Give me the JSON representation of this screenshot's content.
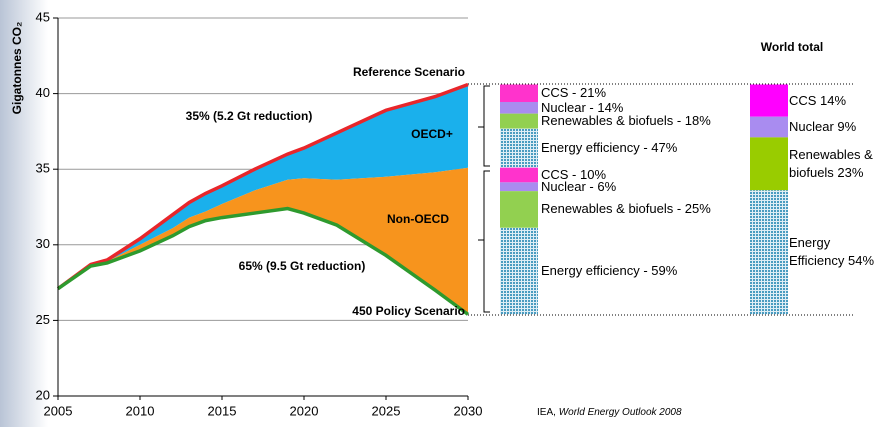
{
  "chart_data": {
    "type": "area",
    "y_label": "Gigatonnes CO₂",
    "xlim": [
      2005,
      2030
    ],
    "xticks": [
      2005,
      2010,
      2015,
      2020,
      2025,
      2030
    ],
    "ylim": [
      20,
      45
    ],
    "yticks": [
      20,
      25,
      30,
      35,
      40,
      45
    ],
    "grid": true,
    "x": [
      2005,
      2007,
      2008,
      2010,
      2012,
      2013,
      2014,
      2015,
      2017,
      2019,
      2020,
      2022,
      2025,
      2028,
      2030
    ],
    "series": [
      {
        "name": "Reference Scenario",
        "color": "#e8262b",
        "values": [
          27.1,
          28.7,
          29.0,
          30.4,
          32.0,
          32.8,
          33.4,
          33.9,
          35.0,
          36.0,
          36.4,
          37.4,
          38.9,
          39.8,
          40.6
        ]
      },
      {
        "values": [
          27.1,
          28.6,
          28.9,
          30.0,
          31.1,
          31.8,
          32.2,
          32.7,
          33.6,
          34.3,
          34.4,
          34.3,
          34.5,
          34.8,
          35.1
        ]
      },
      {
        "name": "450 Policy Scenario",
        "color": "#2e9a2e",
        "values": [
          27.1,
          28.6,
          28.8,
          29.6,
          30.6,
          31.2,
          31.6,
          31.8,
          32.1,
          32.4,
          32.1,
          31.3,
          29.3,
          27.0,
          25.4
        ]
      }
    ],
    "areas": [
      {
        "name": "OECD+",
        "color": "#1ab0ec"
      },
      {
        "name": "Non-OECD",
        "color": "#f7941d"
      }
    ],
    "annotations": [
      "35% (5.2 Gt reduction)",
      "65% (9.5 Gt reduction)"
    ],
    "stacks": [
      {
        "segments": [
          {
            "label": "CCS - 21%",
            "value": 21,
            "color": "#ff33cc"
          },
          {
            "label": "Nuclear - 14%",
            "value": 14,
            "color": "#a98cf0"
          },
          {
            "label": "Renewables & biofuels - 18%",
            "value": 18,
            "color": "#92d050"
          },
          {
            "label": "Energy efficiency - 47%",
            "value": 47,
            "color": "#4a9cc0",
            "pattern": "grid"
          }
        ]
      },
      {
        "segments": [
          {
            "label": "CCS - 10%",
            "value": 10,
            "color": "#ff33cc"
          },
          {
            "label": "Nuclear - 6%",
            "value": 6,
            "color": "#a98cf0"
          },
          {
            "label": "Renewables & biofuels - 25%",
            "value": 25,
            "color": "#92d050"
          },
          {
            "label": "Energy efficiency - 59%",
            "value": 59,
            "color": "#4a9cc0",
            "pattern": "grid"
          }
        ]
      },
      {
        "title": "World total",
        "segments": [
          {
            "label": "CCS 14%",
            "value": 14,
            "color": "#ff00ff"
          },
          {
            "label": "Nuclear 9%",
            "value": 9,
            "color": "#a98cf0"
          },
          {
            "label": "Renewables & biofuels 23%",
            "value": 23,
            "color": "#99cc00"
          },
          {
            "label": "Energy Efficiency 54%",
            "value": 54,
            "color": "#4a9cc0",
            "pattern": "grid"
          }
        ]
      }
    ],
    "source_org": "IEA,",
    "source_title": "World Energy Outlook 2008"
  }
}
